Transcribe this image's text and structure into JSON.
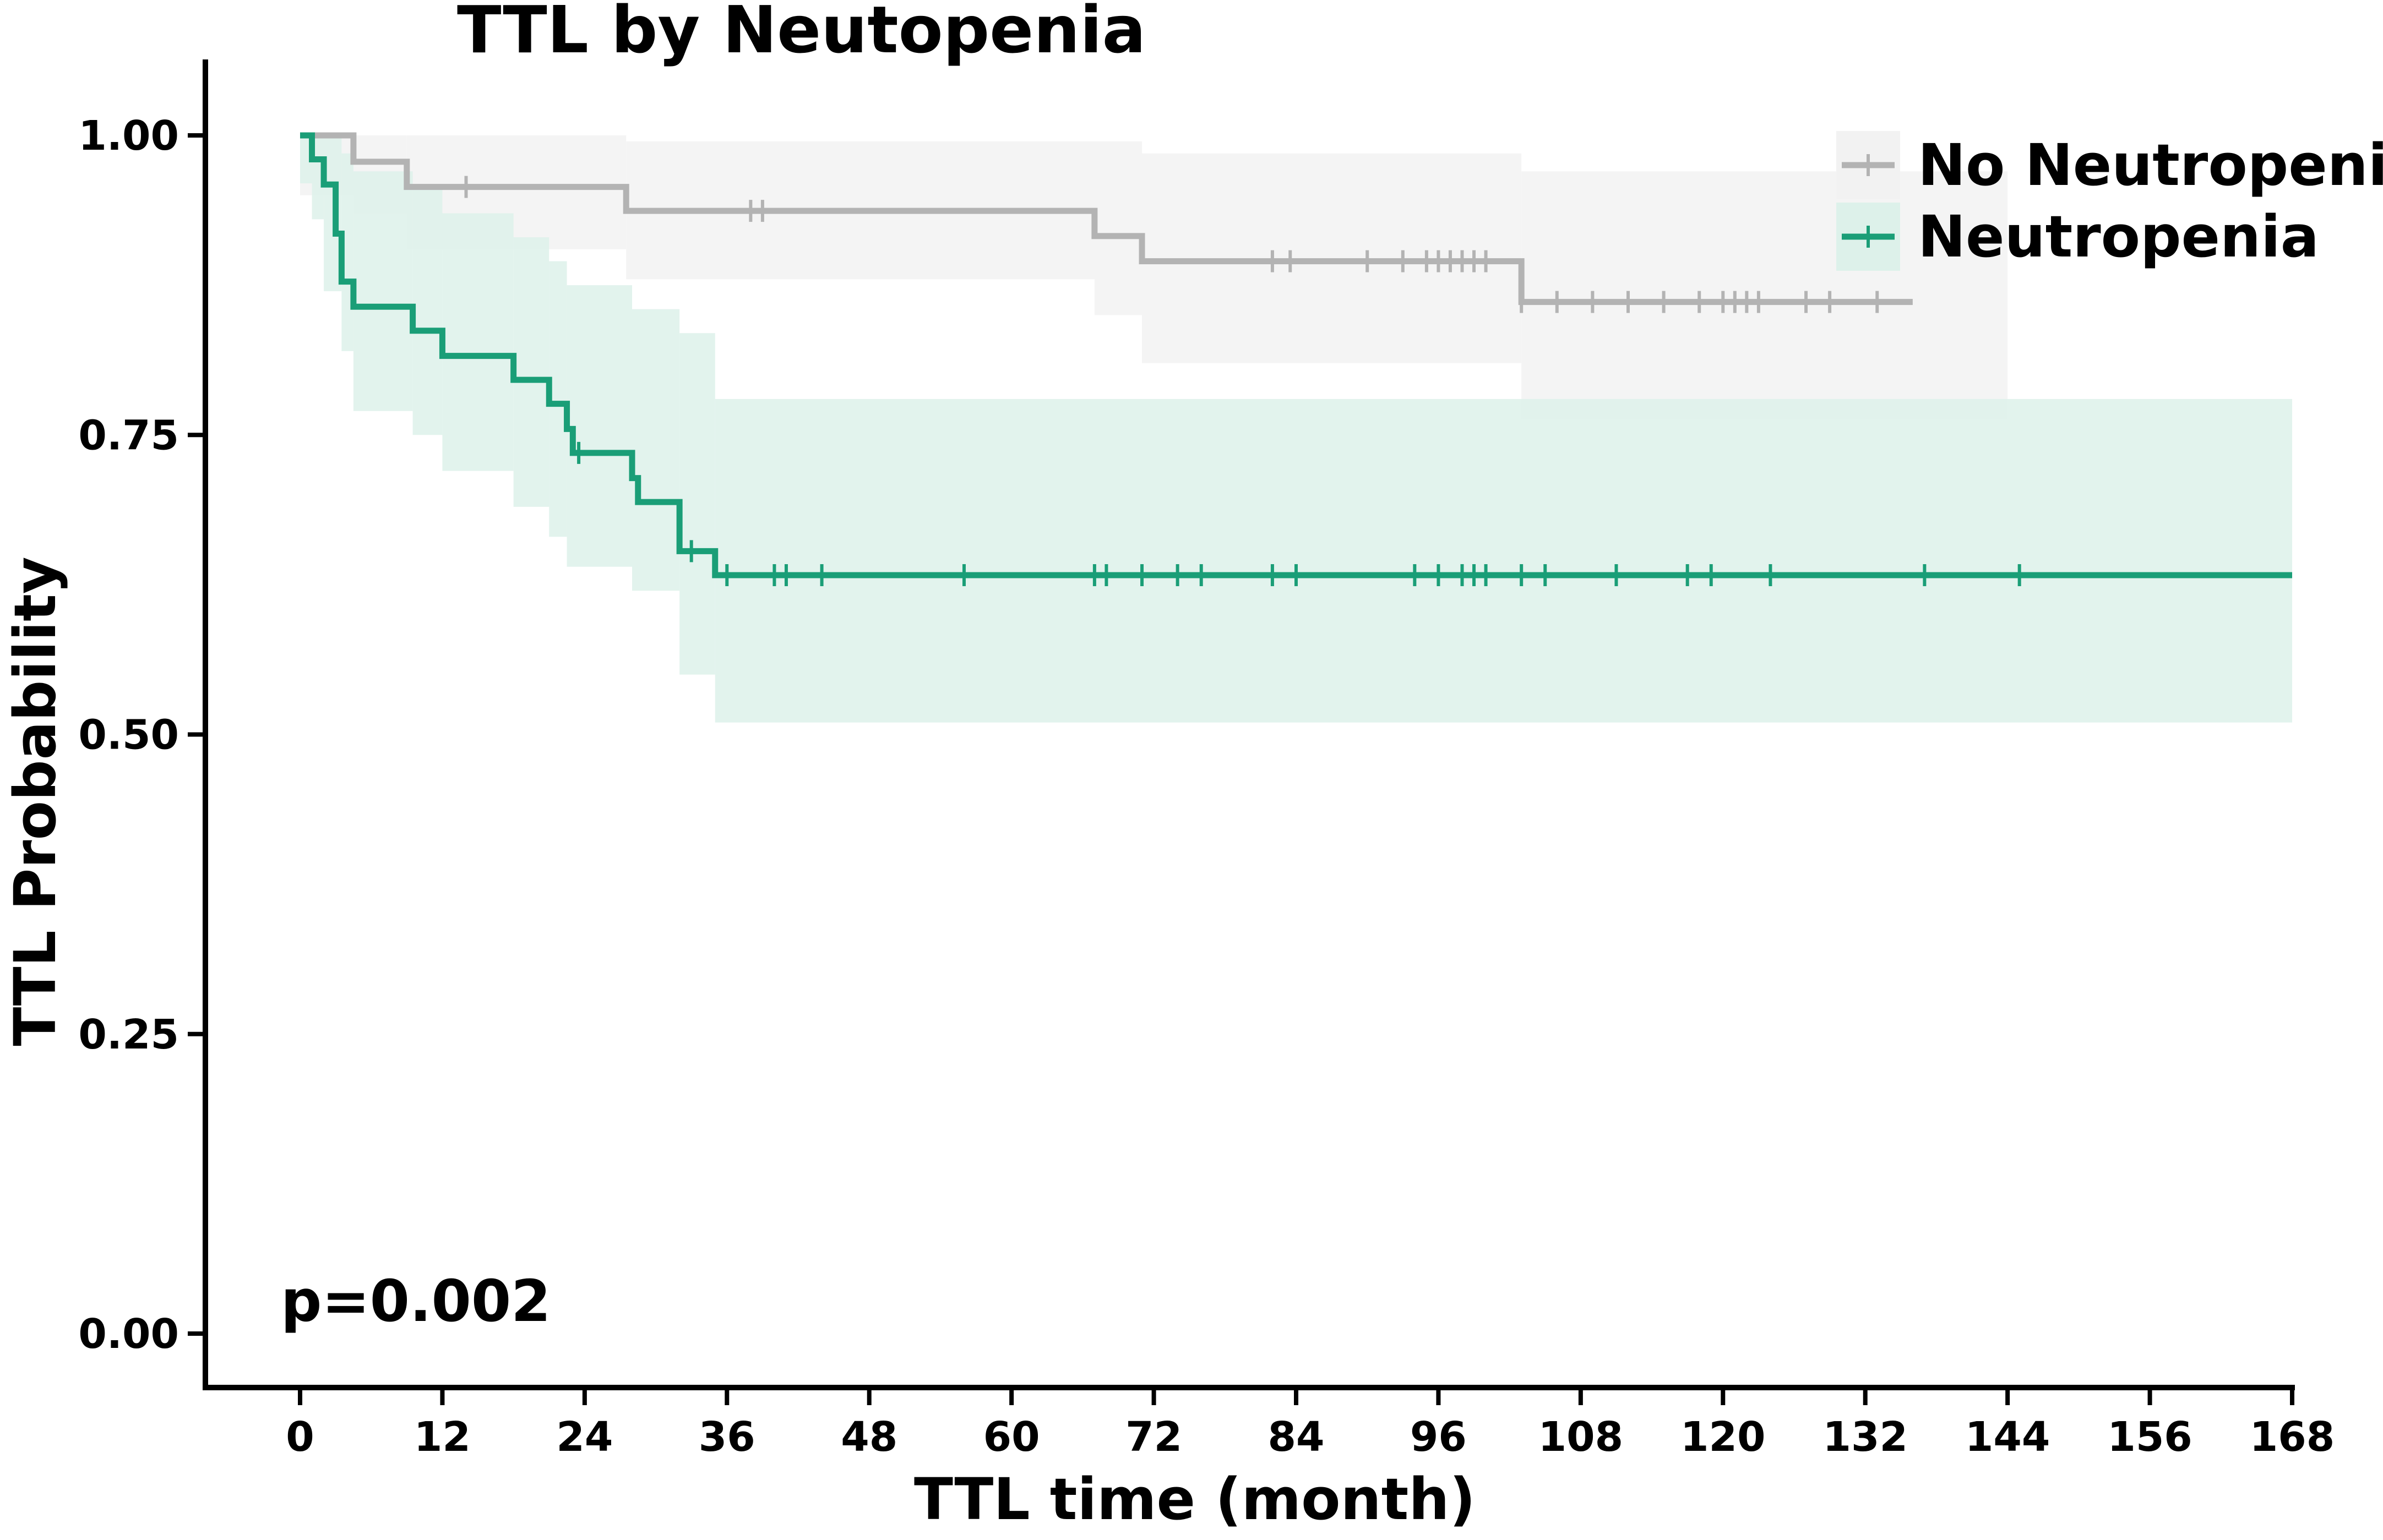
{
  "chart_data": {
    "type": "line",
    "subtype": "kaplan-meier",
    "title": "TTL by Neutopenia",
    "xlabel": "TTL time (month)",
    "ylabel": "TTL Probability",
    "xlim": [
      0,
      168
    ],
    "ylim": [
      0,
      1
    ],
    "xticks": [
      0,
      12,
      24,
      36,
      48,
      60,
      72,
      84,
      96,
      108,
      120,
      132,
      144,
      156,
      168
    ],
    "yticks": [
      0.0,
      0.25,
      0.5,
      0.75,
      1.0
    ],
    "ytick_labels": [
      "0.00",
      "0.25",
      "0.50",
      "0.75",
      "1.00"
    ],
    "annotation": "p=0.002",
    "legend_position": "top-right",
    "series": [
      {
        "name": "No Neutropenia",
        "color": "#b3b3b3",
        "band_color": "#f2f2f2",
        "steps": [
          [
            0,
            1.0
          ],
          [
            4.5,
            0.978
          ],
          [
            9,
            0.957
          ],
          [
            27.5,
            0.937
          ],
          [
            67,
            0.916
          ],
          [
            71,
            0.895
          ],
          [
            103,
            0.861
          ],
          [
            136,
            0.861
          ]
        ],
        "ci_steps": [
          [
            0,
            1.0,
            0.95
          ],
          [
            4.5,
            1.0,
            0.935
          ],
          [
            9,
            1.0,
            0.905
          ],
          [
            27.5,
            0.995,
            0.88
          ],
          [
            67,
            0.995,
            0.85
          ],
          [
            71,
            0.985,
            0.81
          ],
          [
            103,
            0.97,
            0.763
          ],
          [
            144,
            0.97,
            0.763
          ]
        ],
        "censored": [
          14,
          38,
          39,
          82,
          83.5,
          90,
          93,
          95,
          96,
          97,
          98,
          99,
          100,
          103,
          106,
          109,
          112,
          115,
          118,
          120,
          121,
          122,
          123,
          127,
          129,
          133
        ]
      },
      {
        "name": "Neutropenia",
        "color": "#1a9e77",
        "band_color": "#ddf1ea",
        "steps": [
          [
            0,
            1.0
          ],
          [
            1,
            0.98
          ],
          [
            2,
            0.959
          ],
          [
            3,
            0.918
          ],
          [
            3.5,
            0.878
          ],
          [
            4.5,
            0.857
          ],
          [
            9.5,
            0.837
          ],
          [
            12,
            0.816
          ],
          [
            18,
            0.796
          ],
          [
            21,
            0.776
          ],
          [
            22.5,
            0.755
          ],
          [
            23,
            0.735
          ],
          [
            28,
            0.714
          ],
          [
            28.5,
            0.694
          ],
          [
            32,
            0.653
          ],
          [
            35,
            0.633
          ],
          [
            168,
            0.633
          ]
        ],
        "ci_steps": [
          [
            0,
            1.0,
            0.96
          ],
          [
            1,
            1.0,
            0.93
          ],
          [
            2,
            1.0,
            0.87
          ],
          [
            3.5,
            0.985,
            0.82
          ],
          [
            4.5,
            0.97,
            0.77
          ],
          [
            9.5,
            0.955,
            0.75
          ],
          [
            12,
            0.935,
            0.72
          ],
          [
            18,
            0.915,
            0.69
          ],
          [
            21,
            0.895,
            0.665
          ],
          [
            22.5,
            0.875,
            0.64
          ],
          [
            28,
            0.855,
            0.62
          ],
          [
            32,
            0.835,
            0.55
          ],
          [
            35,
            0.78,
            0.51
          ],
          [
            168,
            0.78,
            0.51
          ]
        ],
        "censored": [
          23.5,
          33,
          36,
          40,
          41,
          44,
          56,
          67,
          68,
          71,
          74,
          76,
          82,
          84,
          94,
          96,
          98,
          99,
          100,
          103,
          105,
          111,
          117,
          119,
          124,
          137,
          145
        ]
      }
    ]
  }
}
